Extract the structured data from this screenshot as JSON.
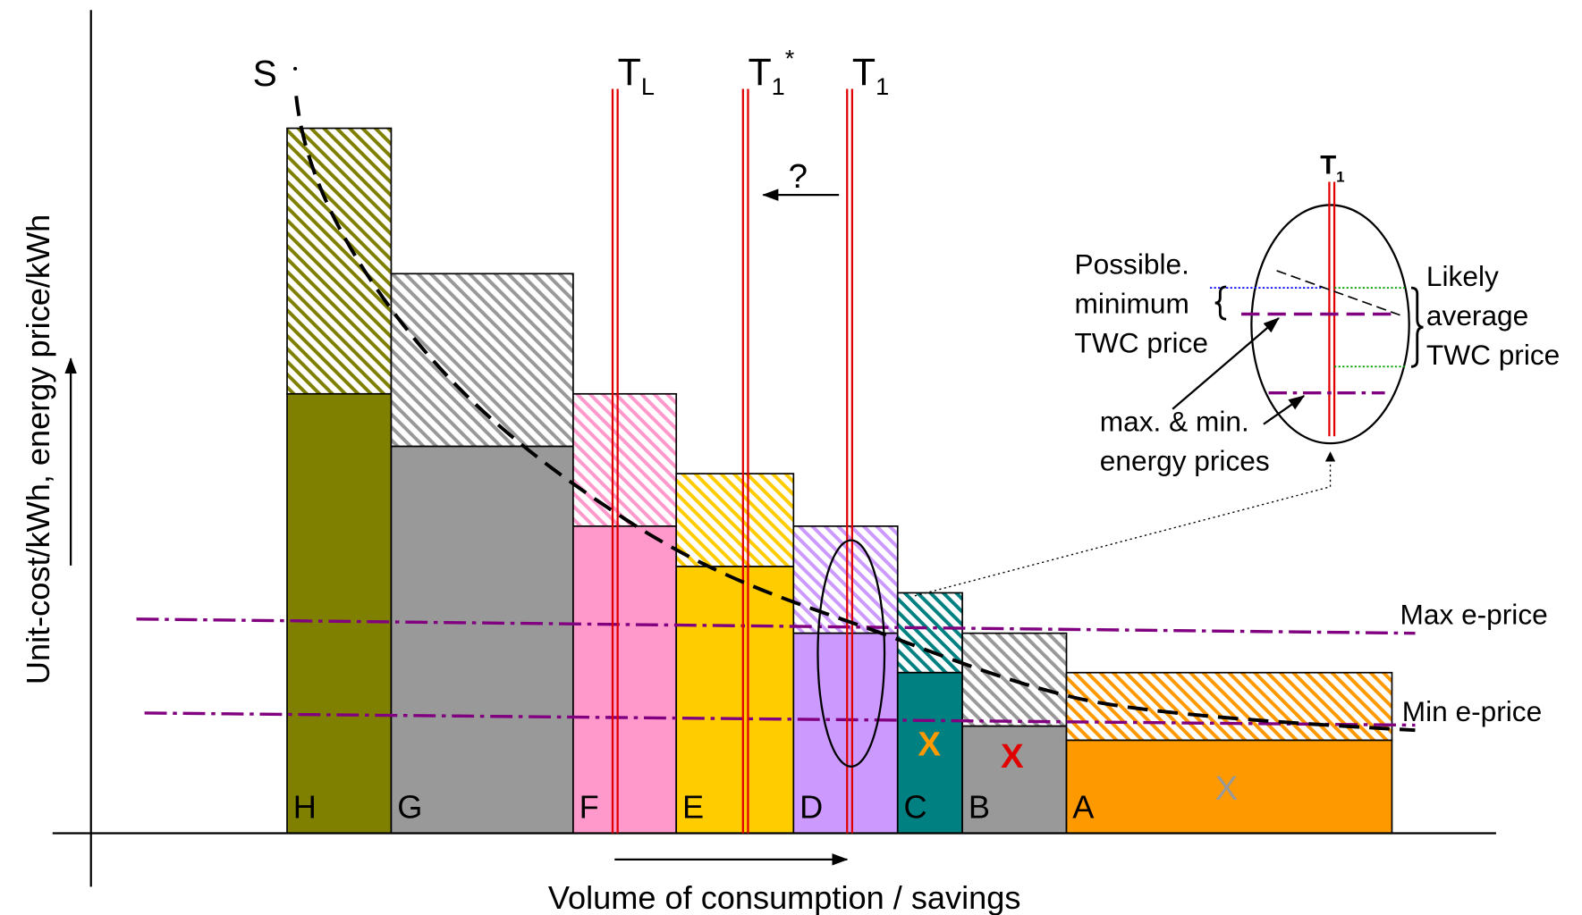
{
  "axes": {
    "x_label": "Volume of consumption / savings",
    "y_label": "Unit-cost/kWh, energy price/kWh"
  },
  "curve_label": "S",
  "thresholds": [
    {
      "label": "T",
      "sub": "L"
    },
    {
      "label": "T",
      "sub": "1",
      "sup": "*"
    },
    {
      "label": "T",
      "sub": "1"
    }
  ],
  "question": "?",
  "blocks": [
    "H",
    "G",
    "F",
    "E",
    "D",
    "C",
    "B",
    "A"
  ],
  "marks": [
    "X",
    "X",
    "X"
  ],
  "price_lines": [
    "Max e-price",
    "Min e-price"
  ],
  "inset": {
    "title": "T",
    "title_sub": "1",
    "left_label": [
      "Possible.",
      "minimum",
      "TWC price"
    ],
    "right_label": [
      "Likely",
      "average",
      "TWC price"
    ],
    "bottom_label": [
      "max. & min.",
      "energy prices"
    ]
  }
}
